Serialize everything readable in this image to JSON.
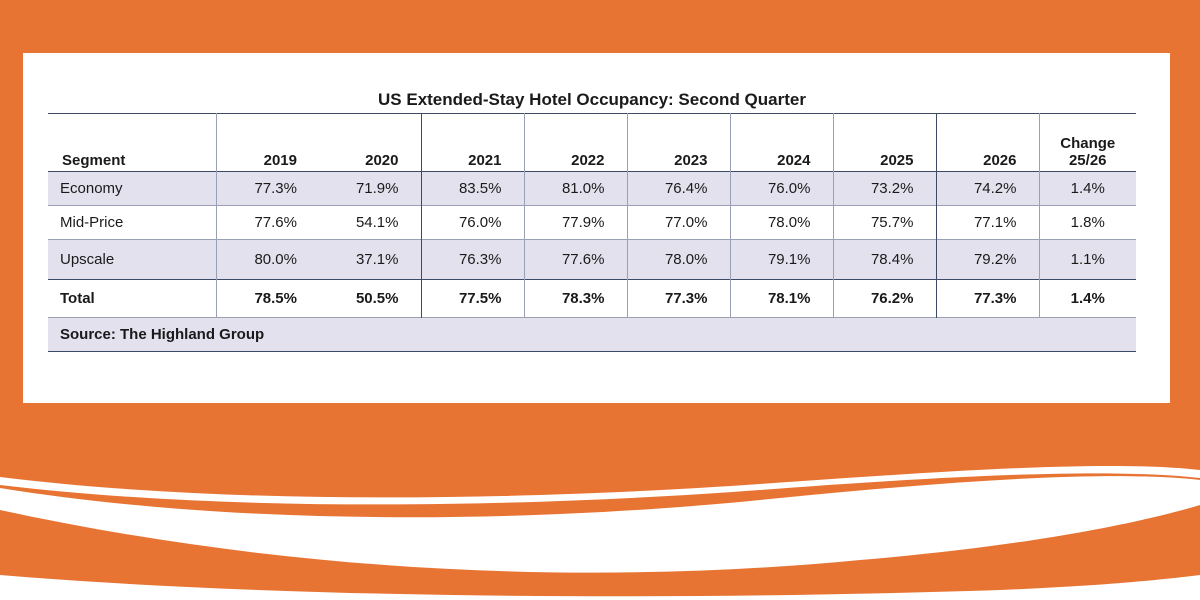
{
  "chart_data": {
    "type": "table",
    "title": "US Extended-Stay Hotel Occupancy: Second Quarter",
    "columns": [
      "Segment",
      "2019",
      "2020",
      "2021",
      "2022",
      "2023",
      "2024",
      "2025",
      "2026",
      "Change 25/26"
    ],
    "change_header": {
      "line1": "Change",
      "line2": "25/26"
    },
    "rows": [
      {
        "segment": "Economy",
        "values": [
          "77.3%",
          "71.9%",
          "83.5%",
          "81.0%",
          "76.4%",
          "76.0%",
          "73.2%",
          "74.2%"
        ],
        "change": "1.4%"
      },
      {
        "segment": "Mid-Price",
        "values": [
          "77.6%",
          "54.1%",
          "76.0%",
          "77.9%",
          "77.0%",
          "78.0%",
          "75.7%",
          "77.1%"
        ],
        "change": "1.8%"
      },
      {
        "segment": "Upscale",
        "values": [
          "80.0%",
          "37.1%",
          "76.3%",
          "77.6%",
          "78.0%",
          "79.1%",
          "78.4%",
          "79.2%"
        ],
        "change": "1.1%"
      }
    ],
    "total": {
      "segment": "Total",
      "values": [
        "78.5%",
        "50.5%",
        "77.5%",
        "78.3%",
        "77.3%",
        "78.1%",
        "76.2%",
        "77.3%"
      ],
      "change": "1.4%"
    },
    "source": "Source: The Highland Group"
  },
  "colors": {
    "background_orange": "#E87434",
    "card": "#FFFFFF",
    "shaded_row": "#E4E1EE",
    "rule": "#3D4A66"
  }
}
